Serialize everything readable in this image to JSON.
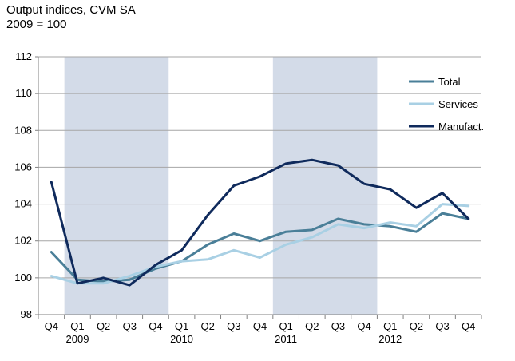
{
  "chart_data": {
    "type": "line",
    "title": "Output indices, CVM SA",
    "subtitle": "2009 = 100",
    "ylim": [
      98,
      112
    ],
    "y_ticks": [
      98,
      100,
      102,
      104,
      106,
      108,
      110,
      112
    ],
    "grid": true,
    "legend_position": "top-right",
    "categories": [
      "Q4",
      "Q1",
      "Q2",
      "Q3",
      "Q4",
      "Q1",
      "Q2",
      "Q3",
      "Q4",
      "Q1",
      "Q2",
      "Q3",
      "Q4",
      "Q1",
      "Q2",
      "Q3",
      "Q4"
    ],
    "year_labels": [
      {
        "index": 1,
        "label": "2009"
      },
      {
        "index": 5,
        "label": "2010"
      },
      {
        "index": 9,
        "label": "2011"
      },
      {
        "index": 13,
        "label": "2012"
      }
    ],
    "shaded_ranges": [
      [
        1,
        4
      ],
      [
        9,
        12
      ]
    ],
    "shade_color": "#d3dbe8",
    "series": [
      {
        "name": "Total",
        "color": "#4a7f98",
        "values": [
          101.4,
          99.9,
          99.8,
          99.9,
          100.5,
          100.9,
          101.8,
          102.4,
          102.0,
          102.5,
          102.6,
          103.2,
          102.9,
          102.8,
          102.5,
          103.5,
          103.2
        ]
      },
      {
        "name": "Services",
        "color": "#a9d0e4",
        "values": [
          100.1,
          99.7,
          99.7,
          100.1,
          100.6,
          100.9,
          101.0,
          101.5,
          101.1,
          101.8,
          102.2,
          102.9,
          102.7,
          103.0,
          102.8,
          104.0,
          103.9
        ]
      },
      {
        "name": "Manufact.",
        "color": "#0f2a5c",
        "values": [
          105.2,
          99.7,
          100.0,
          99.6,
          100.7,
          101.5,
          103.4,
          105.0,
          105.5,
          106.2,
          106.4,
          106.1,
          105.1,
          104.8,
          103.8,
          104.6,
          103.2
        ]
      }
    ]
  }
}
